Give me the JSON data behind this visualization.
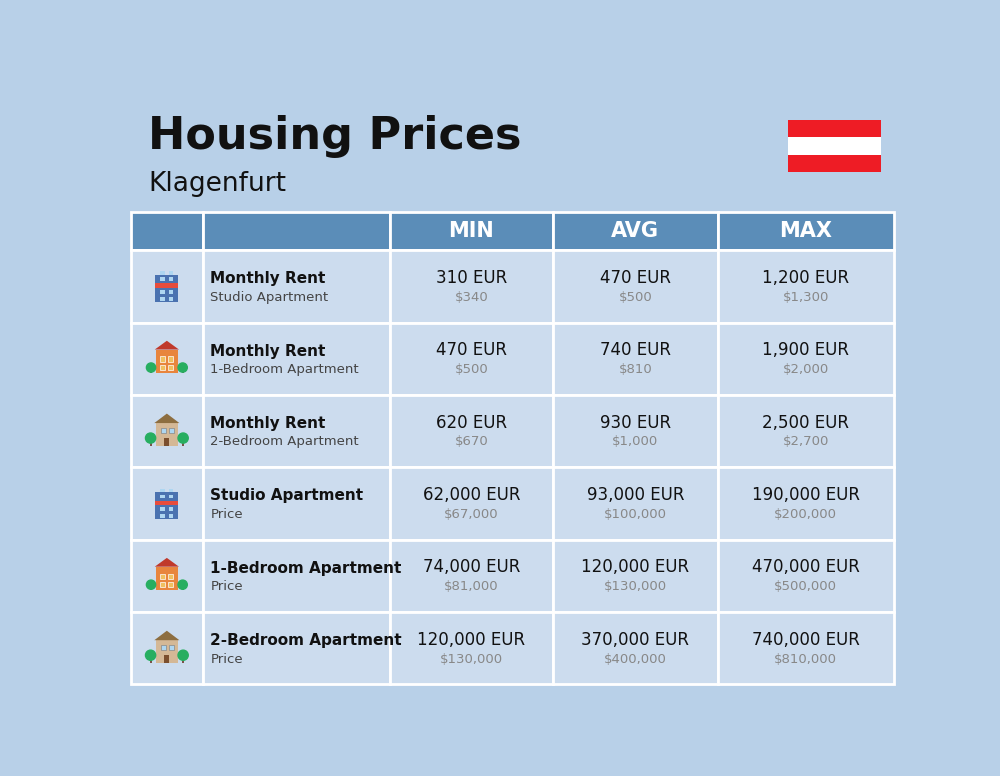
{
  "title": "Housing Prices",
  "subtitle": "Klagenfurt",
  "background_color": "#b8d0e8",
  "header_color": "#5b8db8",
  "row_color": "#ccdcee",
  "col_headers": [
    "MIN",
    "AVG",
    "MAX"
  ],
  "rows": [
    {
      "bold_label": "Monthly Rent",
      "sub_label": "Studio Apartment",
      "min_eur": "310 EUR",
      "min_usd": "$340",
      "avg_eur": "470 EUR",
      "avg_usd": "$500",
      "max_eur": "1,200 EUR",
      "max_usd": "$1,300",
      "icon_type": "blue_studio"
    },
    {
      "bold_label": "Monthly Rent",
      "sub_label": "1-Bedroom Apartment",
      "min_eur": "470 EUR",
      "min_usd": "$500",
      "avg_eur": "740 EUR",
      "avg_usd": "$810",
      "max_eur": "1,900 EUR",
      "max_usd": "$2,000",
      "icon_type": "orange_1bed"
    },
    {
      "bold_label": "Monthly Rent",
      "sub_label": "2-Bedroom Apartment",
      "min_eur": "620 EUR",
      "min_usd": "$670",
      "avg_eur": "930 EUR",
      "avg_usd": "$1,000",
      "max_eur": "2,500 EUR",
      "max_usd": "$2,700",
      "icon_type": "beige_2bed"
    },
    {
      "bold_label": "Studio Apartment",
      "sub_label": "Price",
      "min_eur": "62,000 EUR",
      "min_usd": "$67,000",
      "avg_eur": "93,000 EUR",
      "avg_usd": "$100,000",
      "max_eur": "190,000 EUR",
      "max_usd": "$200,000",
      "icon_type": "blue_studio"
    },
    {
      "bold_label": "1-Bedroom Apartment",
      "sub_label": "Price",
      "min_eur": "74,000 EUR",
      "min_usd": "$81,000",
      "avg_eur": "120,000 EUR",
      "avg_usd": "$130,000",
      "max_eur": "470,000 EUR",
      "max_usd": "$500,000",
      "icon_type": "orange_1bed"
    },
    {
      "bold_label": "2-Bedroom Apartment",
      "sub_label": "Price",
      "min_eur": "120,000 EUR",
      "min_usd": "$130,000",
      "avg_eur": "370,000 EUR",
      "avg_usd": "$400,000",
      "max_eur": "740,000 EUR",
      "max_usd": "$810,000",
      "icon_type": "beige_2bed"
    }
  ],
  "flag_red": "#EE1C25",
  "flag_white": "#ffffff"
}
